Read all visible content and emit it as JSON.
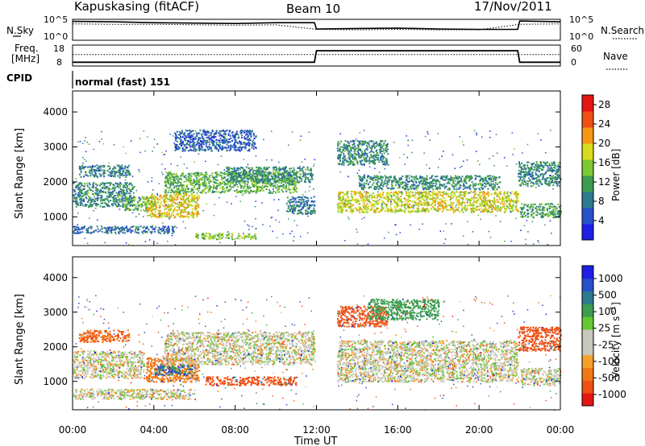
{
  "header": {
    "station": "Kapuskasing (fitACF)",
    "beam": "Beam 10",
    "date": "17/Nov/2011"
  },
  "top_panels": {
    "nsky_label": "N.Sky",
    "nsky_tick_hi": "10^5",
    "nsky_tick_lo": "10^0",
    "nsearch_label": "N.Search",
    "nsearch_tick_hi": "10^5",
    "nsearch_tick_lo": "10^0",
    "freq_label_1": "Freq.",
    "freq_label_2": "[MHz]",
    "freq_tick_hi": "18",
    "freq_tick_lo": "8",
    "nave_label": "Nave",
    "nave_tick_hi": "60",
    "nave_tick_lo": "0",
    "cpid_label": "CPID",
    "cpid_value": "normal (fast) 151"
  },
  "colors": {
    "power_scale": [
      "#1e1ee6",
      "#2850c8",
      "#2e7a8e",
      "#3c9c50",
      "#7ec832",
      "#d7dc1e",
      "#f59614",
      "#f05014",
      "#e61414"
    ],
    "velocity_scale": [
      "#e61414",
      "#f05014",
      "#f07814",
      "#f5a028",
      "#c8c8be",
      "#c8c8be",
      "#64c832",
      "#3c9c50",
      "#2e7a8e",
      "#2850c8",
      "#1e1ee6"
    ],
    "ground_scatter": "#c8c8be"
  },
  "chart_data": [
    {
      "type": "line",
      "panel": "N.Sky / N.Search",
      "ylabel_left": "N.Sky",
      "ylabel_right": "N.Search",
      "ylim": [
        0,
        5
      ],
      "scale": "log",
      "series": [
        {
          "name": "N.Sky",
          "x": [
            0,
            2,
            4,
            6,
            8,
            10,
            11.9,
            12.0,
            14,
            16,
            18,
            20,
            21.9,
            22.0,
            24
          ],
          "y": [
            4.5,
            4.4,
            4.2,
            4.1,
            4.0,
            4.2,
            4.2,
            2.7,
            2.8,
            2.9,
            2.7,
            2.6,
            2.6,
            4.6,
            4.4
          ]
        },
        {
          "name": "N.Search",
          "x": [
            0,
            2,
            4,
            6,
            8,
            10,
            12,
            14,
            16,
            18,
            20,
            22,
            24
          ],
          "y": [
            3.9,
            3.8,
            3.8,
            3.7,
            3.6,
            3.7,
            2.6,
            2.5,
            2.6,
            2.5,
            2.5,
            3.8,
            3.9
          ]
        }
      ]
    },
    {
      "type": "line",
      "panel": "Freq. / Nave",
      "ylabel_left": "Freq. [MHz]",
      "ylabel_right": "Nave",
      "series": [
        {
          "name": "Freq.",
          "x": [
            0,
            11.9,
            12.0,
            21.9,
            22.0,
            24
          ],
          "y": [
            9.8,
            9.8,
            15.3,
            15.3,
            9.8,
            9.8
          ],
          "ylim": [
            8,
            18
          ]
        },
        {
          "name": "Nave",
          "x": [
            0,
            24
          ],
          "y": [
            33,
            33
          ],
          "ylim": [
            0,
            60
          ]
        }
      ]
    },
    {
      "type": "heatmap",
      "panel": "Power",
      "xlabel": "Time UT",
      "ylabel": "Slant Range [km]",
      "xlim": [
        0,
        24
      ],
      "ylim": [
        180,
        4600
      ],
      "xticks": [
        "00:00",
        "04:00",
        "08:00",
        "12:00",
        "16:00",
        "20:00",
        "00:00"
      ],
      "yticks": [
        1000,
        2000,
        3000,
        4000
      ],
      "colorbar": {
        "label": "Power [dB]",
        "ticks": [
          4,
          8,
          12,
          16,
          20,
          24,
          28
        ],
        "range": [
          0,
          30
        ]
      },
      "regions": [
        {
          "t0": 0.3,
          "t1": 2.8,
          "r0": 2150,
          "r1": 2500,
          "value": 9
        },
        {
          "t0": 0.0,
          "t1": 3.0,
          "r0": 1300,
          "r1": 2000,
          "value": 10
        },
        {
          "t0": 2.5,
          "t1": 4.0,
          "r0": 1200,
          "r1": 1600,
          "value": 13
        },
        {
          "t0": 3.6,
          "t1": 6.2,
          "r0": 1000,
          "r1": 1700,
          "value": 19
        },
        {
          "t0": 4.5,
          "t1": 11.0,
          "r0": 1700,
          "r1": 2300,
          "value": 13
        },
        {
          "t0": 7.5,
          "t1": 11.8,
          "r0": 2000,
          "r1": 2450,
          "value": 10
        },
        {
          "t0": 10.5,
          "t1": 11.9,
          "r0": 1100,
          "r1": 1600,
          "value": 8
        },
        {
          "t0": 0.0,
          "t1": 5.0,
          "r0": 550,
          "r1": 750,
          "value": 7
        },
        {
          "t0": 6.0,
          "t1": 9.0,
          "r0": 380,
          "r1": 550,
          "value": 15
        },
        {
          "t0": 5.0,
          "t1": 9.0,
          "r0": 2900,
          "r1": 3500,
          "value": 6
        },
        {
          "t0": 13.0,
          "t1": 15.5,
          "r0": 2500,
          "r1": 3200,
          "value": 10
        },
        {
          "t0": 13.0,
          "t1": 21.9,
          "r0": 1150,
          "r1": 1750,
          "value": 18
        },
        {
          "t0": 14.0,
          "t1": 21.0,
          "r0": 1800,
          "r1": 2200,
          "value": 10
        },
        {
          "t0": 21.9,
          "t1": 24.0,
          "r0": 1900,
          "r1": 2600,
          "value": 10
        },
        {
          "t0": 22.0,
          "t1": 24.0,
          "r0": 1000,
          "r1": 1400,
          "value": 12
        }
      ]
    },
    {
      "type": "heatmap",
      "panel": "Velocity",
      "xlabel": "Time UT",
      "ylabel": "Slant Range [km]",
      "xlim": [
        0,
        24
      ],
      "ylim": [
        180,
        4600
      ],
      "xticks": [
        "00:00",
        "04:00",
        "08:00",
        "12:00",
        "16:00",
        "20:00",
        "00:00"
      ],
      "yticks": [
        1000,
        2000,
        3000,
        4000
      ],
      "colorbar": {
        "label": "Velocity [m s^-1]",
        "ticks": [
          1000,
          500,
          100,
          25,
          -25,
          -100,
          -500,
          -1000
        ]
      },
      "regions": [
        {
          "t0": 0.3,
          "t1": 2.8,
          "r0": 2150,
          "r1": 2500,
          "value": -300
        },
        {
          "t0": 0.0,
          "t1": 3.5,
          "r0": 1100,
          "r1": 1900,
          "value": 0
        },
        {
          "t0": 3.6,
          "t1": 6.2,
          "r0": 1000,
          "r1": 1700,
          "value": -200
        },
        {
          "t0": 4.0,
          "t1": 6.0,
          "r0": 1200,
          "r1": 1500,
          "value": 300
        },
        {
          "t0": 4.5,
          "t1": 11.9,
          "r0": 1500,
          "r1": 2450,
          "value": 0
        },
        {
          "t0": 0.0,
          "t1": 6.0,
          "r0": 500,
          "r1": 800,
          "value": 0
        },
        {
          "t0": 6.5,
          "t1": 11.0,
          "r0": 900,
          "r1": 1150,
          "value": -400
        },
        {
          "t0": 13.0,
          "t1": 15.5,
          "r0": 2600,
          "r1": 3200,
          "value": -400
        },
        {
          "t0": 14.5,
          "t1": 18.0,
          "r0": 2800,
          "r1": 3400,
          "value": 200
        },
        {
          "t0": 13.0,
          "t1": 21.9,
          "r0": 1000,
          "r1": 2200,
          "value": 0
        },
        {
          "t0": 21.9,
          "t1": 24.0,
          "r0": 1900,
          "r1": 2600,
          "value": -400
        },
        {
          "t0": 22.0,
          "t1": 24.0,
          "r0": 900,
          "r1": 1400,
          "value": 0
        }
      ]
    }
  ]
}
